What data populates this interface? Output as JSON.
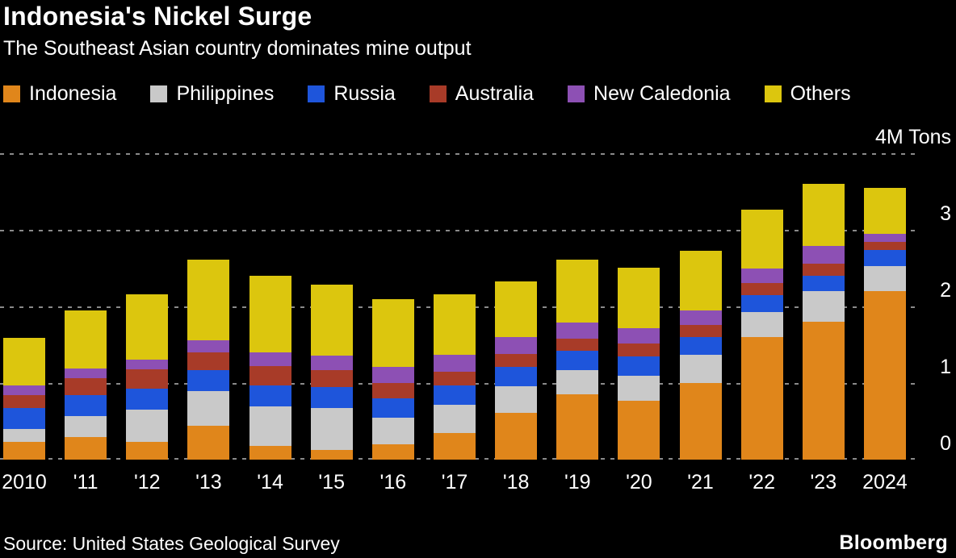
{
  "header": {
    "title": "Indonesia's Nickel Surge",
    "subtitle": "The Southeast Asian country dominates mine output"
  },
  "footer": {
    "source": "Source: United States Geological Survey",
    "brand": "Bloomberg"
  },
  "colors": {
    "background": "#000000",
    "text": "#ffffff",
    "gridline": "#8a8a8a"
  },
  "chart_data": {
    "type": "bar",
    "stacked": true,
    "title": "Indonesia's Nickel Surge",
    "subtitle": "The Southeast Asian country dominates mine output",
    "unit": "M Tons",
    "ylim": [
      0,
      4
    ],
    "grid": true,
    "grid_style": "dashed",
    "legend_position": "top",
    "categories": [
      "2010",
      "'11",
      "'12",
      "'13",
      "'14",
      "'15",
      "'16",
      "'17",
      "'18",
      "'19",
      "'20",
      "'21",
      "'22",
      "'23",
      "2024"
    ],
    "series": [
      {
        "name": "Indonesia",
        "color": "#E0861B",
        "values": [
          0.23,
          0.29,
          0.23,
          0.44,
          0.18,
          0.13,
          0.2,
          0.35,
          0.61,
          0.85,
          0.77,
          1.0,
          1.6,
          1.8,
          2.2
        ]
      },
      {
        "name": "Philippines",
        "color": "#C9C9C9",
        "values": [
          0.17,
          0.27,
          0.42,
          0.45,
          0.52,
          0.55,
          0.35,
          0.37,
          0.35,
          0.32,
          0.33,
          0.37,
          0.33,
          0.4,
          0.33
        ]
      },
      {
        "name": "Russia",
        "color": "#1E55DB",
        "values": [
          0.27,
          0.27,
          0.27,
          0.27,
          0.27,
          0.27,
          0.25,
          0.25,
          0.25,
          0.25,
          0.25,
          0.23,
          0.22,
          0.2,
          0.21
        ]
      },
      {
        "name": "Australia",
        "color": "#A83B28",
        "values": [
          0.17,
          0.22,
          0.25,
          0.23,
          0.25,
          0.22,
          0.2,
          0.18,
          0.17,
          0.16,
          0.17,
          0.16,
          0.16,
          0.16,
          0.11
        ]
      },
      {
        "name": "New Caledonia",
        "color": "#8D50B4",
        "values": [
          0.13,
          0.13,
          0.13,
          0.16,
          0.18,
          0.19,
          0.21,
          0.22,
          0.22,
          0.21,
          0.2,
          0.19,
          0.19,
          0.23,
          0.11
        ]
      },
      {
        "name": "Others",
        "color": "#DCC60E",
        "values": [
          0.62,
          0.76,
          0.85,
          1.05,
          1.0,
          0.93,
          0.88,
          0.79,
          0.73,
          0.82,
          0.79,
          0.78,
          0.77,
          0.81,
          0.6
        ]
      }
    ],
    "grid_values": [
      0,
      1,
      2,
      3,
      4
    ],
    "yaxis": [
      {
        "value": 4,
        "label": "4M Tons"
      },
      {
        "value": 3,
        "label": "3"
      },
      {
        "value": 2,
        "label": "2"
      },
      {
        "value": 1,
        "label": "1"
      },
      {
        "value": 0,
        "label": "0"
      }
    ]
  }
}
